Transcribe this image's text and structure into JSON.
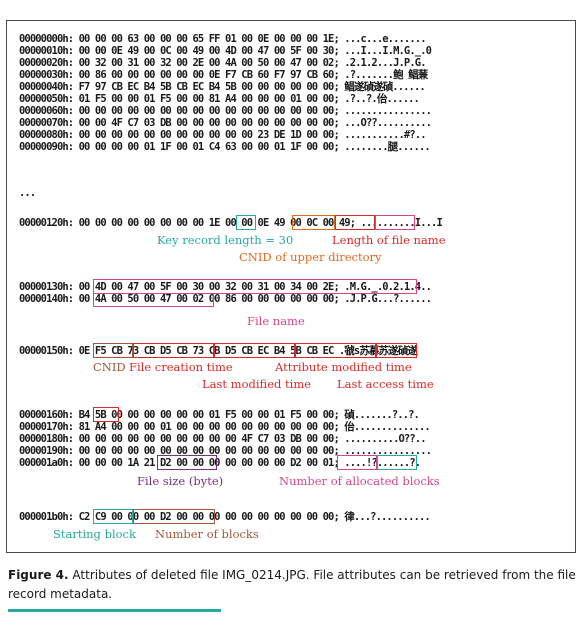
{
  "hex_rows": [
    {
      "offset": "00000000h:",
      "bytes": "00 00 00 63 00 00 00 65 FF 01 00 0E 00 00 00 1E;",
      "ascii": "...c...e......."
    },
    {
      "offset": "00000010h:",
      "bytes": "00 00 0E 49 00 0C 00 49 00 4D 00 47 00 5F 00 30;",
      "ascii": "...I...I.M.G._.0"
    },
    {
      "offset": "00000020h:",
      "bytes": "00 32 00 31 00 32 00 2E 00 4A 00 50 00 47 00 02;",
      "ascii": ".2.1.2...J.P.G."
    },
    {
      "offset": "00000030h:",
      "bytes": "00 86 00 00 00 00 00 00 0E F7 CB 60 F7 97 CB 60;",
      "ascii": ".?.......鲍 鲳蒹"
    },
    {
      "offset": "00000040h:",
      "bytes": "F7 97 CB EC B4 5B CB EC B4 5B 00 00 00 00 00 00;",
      "ascii": "鲳遂碵遂碵......"
    },
    {
      "offset": "00000050h:",
      "bytes": "01 F5 00 00 01 F5 00 00 81 A4 00 00 00 01 00 00;",
      "ascii": ".?..?.佁......"
    },
    {
      "offset": "00000060h:",
      "bytes": "00 00 00 00 00 00 00 00 00 00 00 00 00 00 00 00;",
      "ascii": "................"
    },
    {
      "offset": "00000070h:",
      "bytes": "00 00 4F C7 03 DB 00 00 00 00 00 00 00 00 00 00;",
      "ascii": "...O??.........."
    },
    {
      "offset": "00000080h:",
      "bytes": "00 00 00 00 00 00 00 00 00 00 00 23 DE 1D 00 00;",
      "ascii": "...........#?.."
    },
    {
      "offset": "00000090h:",
      "bytes": "00 00 00 00 01 1F 00 01 C4 63 00 00 01 1F 00 00;",
      "ascii": "........腿......"
    }
  ],
  "ellipsis": "...",
  "row_120": {
    "offset": "00000120h:",
    "bytes": "00 00 00 00 00 00 00 00 1E 00 00 0E 49 00 0C 00 49;",
    "ascii": "..........I...I"
  },
  "rows_130": [
    {
      "offset": "00000130h:",
      "bytes": "00 4D 00 47 00 5F 00 30 00 32 00 31 00 34 00 2E;",
      "ascii": ".M.G._.0.2.1.4.."
    },
    {
      "offset": "00000140h:",
      "bytes": "00 4A 00 50 00 47 00 02 00 86 00 00 00 00 00 00;",
      "ascii": ".J.P.G...?......"
    }
  ],
  "row_150": {
    "offset": "00000150h:",
    "bytes": "0E F5 CB 73 CB D5 CB 73 CB D5 CB EC B4 5B CB EC",
    "ascii": ".虢s苏慕苏遂碵遂"
  },
  "rows_160": [
    {
      "offset": "00000160h:",
      "bytes": "B4 5B 00 00 00 00 00 00 01 F5 00 00 01 F5 00 00;",
      "ascii": "碵.......?..?."
    },
    {
      "offset": "00000170h:",
      "bytes": "81 A4 00 00 00 01 00 00 00 00 00 00 00 00 00 00;",
      "ascii": "佁.............."
    },
    {
      "offset": "00000180h:",
      "bytes": "00 00 00 00 00 00 00 00 00 00 4F C7 03 DB 00 00;",
      "ascii": "..........O??.."
    },
    {
      "offset": "00000190h:",
      "bytes": "00 00 00 00 00 00 00 00 00 00 00 00 00 00 00 00;",
      "ascii": "................"
    },
    {
      "offset": "000001a0h:",
      "bytes": "00 00 00 1A 21 D2 00 00 00 00 00 00 00 D2 00 01;",
      "ascii": "....!?......?."
    }
  ],
  "row_1b0": {
    "offset": "000001b0h:",
    "bytes": "C2 C9 00 00 00 D2 00 00 00 00 00 00 00 00 00 00;",
    "ascii": "律...?.........."
  },
  "annotations": {
    "key_record_length": "Key record length = 30",
    "length_of_file_name": "Length of file name",
    "cnid_upper": "CNID of upper directory",
    "file_name": "File name",
    "cnid": "CNID",
    "file_creation_time": "File creation time",
    "attribute_modified_time": "Attribute modified time",
    "last_modified_time": "Last modified time",
    "last_access_time": "Last access time",
    "file_size": "File size (byte)",
    "allocated_blocks": "Number of allocated blocks",
    "starting_block": "Starting block",
    "number_of_blocks": "Number of  blocks"
  },
  "caption": {
    "label": "Figure 4.",
    "text": " Attributes of deleted file IMG_0214.JPG. File attributes can be retrieved from the file record metadata."
  },
  "colors": {
    "teal": "#26a9a0",
    "orange": "#e06a1c",
    "red": "#d42a2a",
    "pink": "#d4468c",
    "purple": "#7a2f7a",
    "brown": "#a0583a"
  }
}
